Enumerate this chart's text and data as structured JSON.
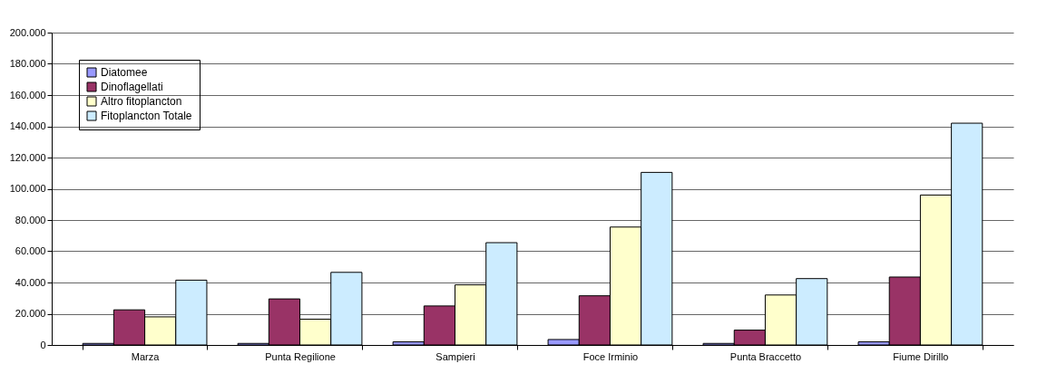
{
  "chart_data": {
    "type": "bar",
    "categories": [
      "Marza",
      "Punta Regilione",
      "Sampieri",
      "Foce Irminio",
      "Punta Braccetto",
      "Fiume Dirillo"
    ],
    "series": [
      {
        "name": "Diatomee",
        "color": "#9999ff",
        "values": [
          1000,
          1000,
          2000,
          3500,
          1000,
          2000
        ]
      },
      {
        "name": "Dinoflagellati",
        "color": "#993366",
        "values": [
          22500,
          29500,
          25000,
          31500,
          9500,
          43500
        ]
      },
      {
        "name": "Altro fitoplancton",
        "color": "#ffffcc",
        "values": [
          18000,
          16500,
          38500,
          75500,
          32000,
          96000
        ]
      },
      {
        "name": "Fitoplancton Totale",
        "color": "#ccecff",
        "values": [
          41500,
          46500,
          65500,
          110500,
          42500,
          142000
        ]
      }
    ],
    "ylim": [
      0,
      200000
    ],
    "yticks": [
      {
        "value": 0,
        "label": "0"
      },
      {
        "value": 20000,
        "label": "20.000"
      },
      {
        "value": 40000,
        "label": "40.000"
      },
      {
        "value": 60000,
        "label": "60.000"
      },
      {
        "value": 80000,
        "label": "80.000"
      },
      {
        "value": 100000,
        "label": "100.000"
      },
      {
        "value": 120000,
        "label": "120.000"
      },
      {
        "value": 140000,
        "label": "140.000"
      },
      {
        "value": 160000,
        "label": "160.000"
      },
      {
        "value": 180000,
        "label": "180.000"
      },
      {
        "value": 200000,
        "label": "200.000"
      }
    ],
    "grid": "y",
    "legend": "top left"
  }
}
